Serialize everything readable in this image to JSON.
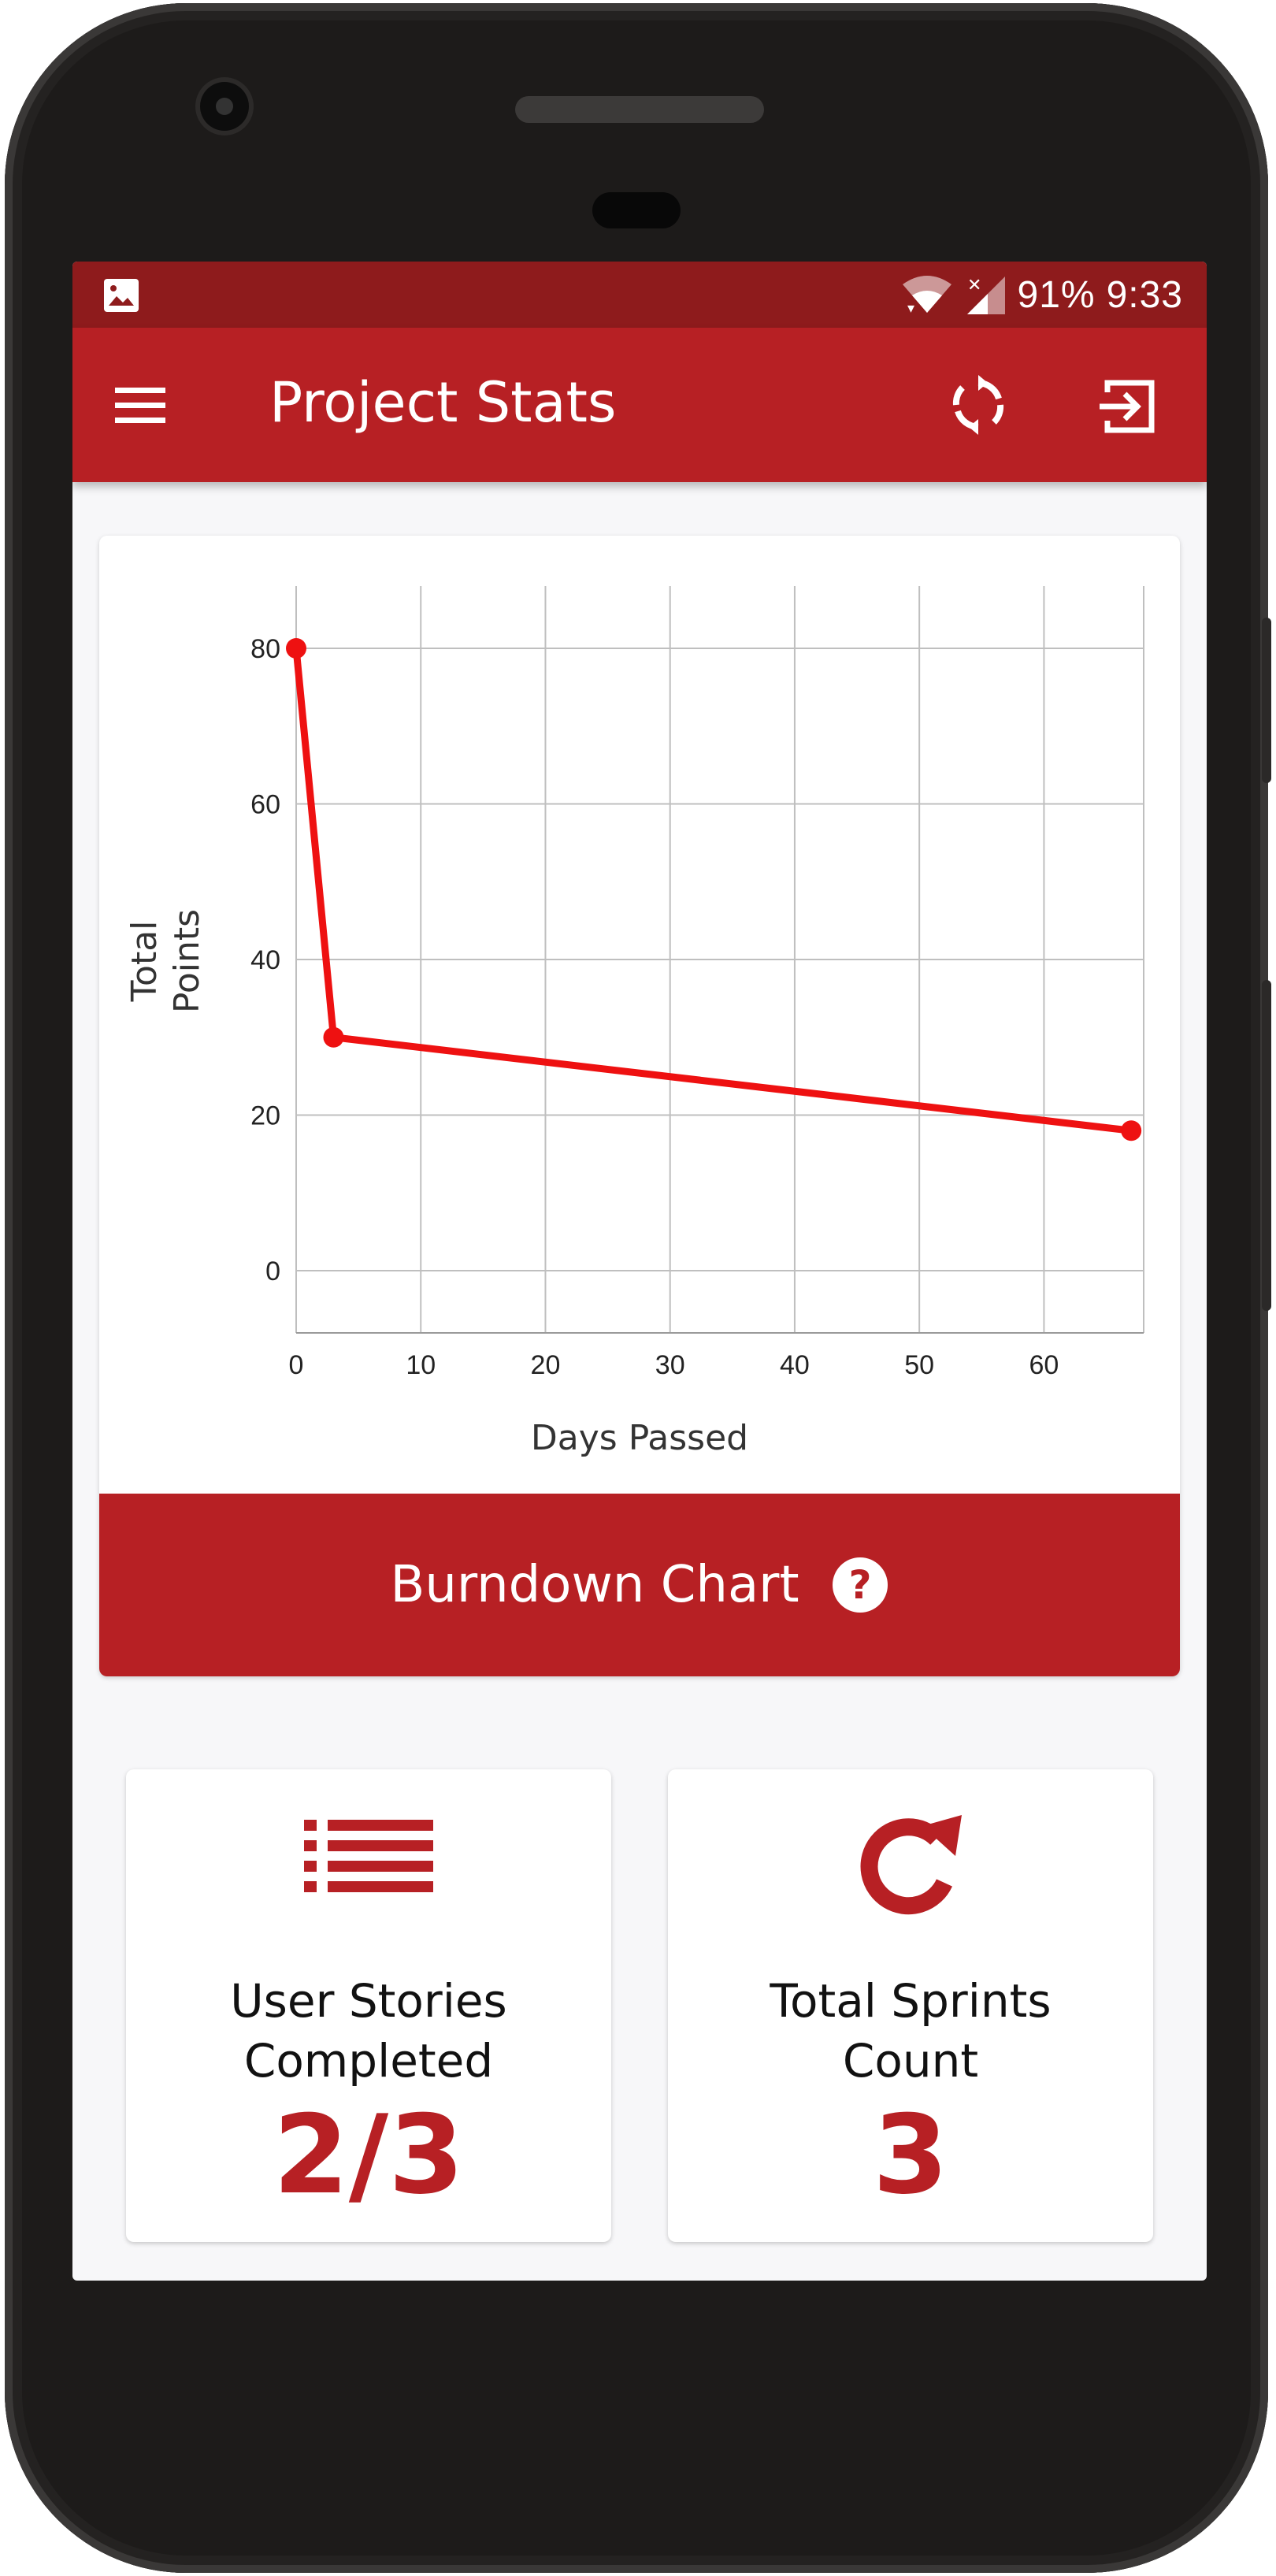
{
  "status_bar": {
    "battery": "91%",
    "time": "9:33",
    "icons": [
      "image-icon",
      "wifi-icon",
      "signal-icon"
    ]
  },
  "app_bar": {
    "title": "Project Stats",
    "icons": [
      "menu-icon",
      "refresh-icon",
      "exit-icon"
    ]
  },
  "colors": {
    "primary": "#b72024",
    "status_bar": "#8e1b1c",
    "line": "#ee1111",
    "background": "#f7f7f9"
  },
  "chart_data": {
    "type": "line",
    "title": "",
    "xlabel": "Days Passed",
    "ylabel": "Total Points",
    "ylabel_lines": [
      "Total",
      "Points"
    ],
    "xlim": [
      0,
      68
    ],
    "ylim": [
      -8,
      88
    ],
    "xticks": [
      0,
      10,
      20,
      30,
      40,
      50,
      60
    ],
    "yticks": [
      0,
      20,
      40,
      60,
      80
    ],
    "grid": true,
    "series": [
      {
        "x": [
          0,
          3,
          67
        ],
        "y": [
          80,
          30,
          18
        ]
      }
    ]
  },
  "chart_footer": {
    "label": "Burndown Chart",
    "help_icon": "help-circle-icon"
  },
  "stats": [
    {
      "icon": "list-icon",
      "label": "User Stories Completed",
      "label_lines": [
        "User Stories",
        "Completed"
      ],
      "value": "2/3"
    },
    {
      "icon": "redo-icon",
      "label": "Total Sprints Count",
      "label_lines": [
        "Total Sprints",
        "Count"
      ],
      "value": "3"
    }
  ]
}
